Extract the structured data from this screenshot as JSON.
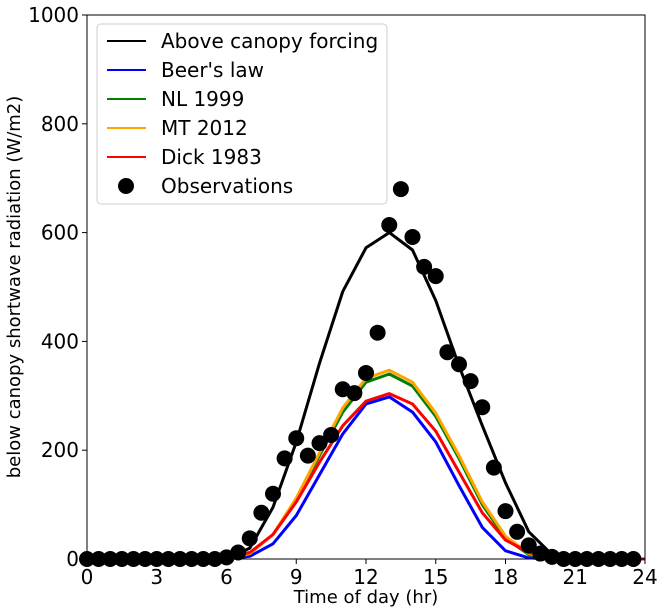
{
  "chart_data": {
    "type": "line",
    "xlabel": "Time of day (hr)",
    "ylabel": "below canopy shortwave radiation (W/m2)",
    "xlim": [
      0,
      24
    ],
    "ylim": [
      0,
      1000
    ],
    "xticks": [
      0,
      3,
      6,
      9,
      12,
      15,
      18,
      21,
      24
    ],
    "yticks": [
      0,
      200,
      400,
      600,
      800,
      1000
    ],
    "xtick_labels": [
      "0",
      "3",
      "6",
      "9",
      "12",
      "15",
      "18",
      "21",
      "24"
    ],
    "ytick_labels": [
      "0",
      "200",
      "400",
      "600",
      "800",
      "1000"
    ],
    "grid": false,
    "legend_position": "top-left",
    "series": [
      {
        "name": "Above canopy forcing",
        "color": "#000000",
        "x": [
          0,
          1,
          2,
          3,
          4,
          5,
          6,
          7,
          8,
          9,
          10,
          11,
          12,
          13,
          14,
          15,
          16,
          17,
          18,
          19,
          20,
          21,
          22,
          23,
          24
        ],
        "y": [
          0,
          0,
          0,
          0,
          0,
          0,
          0,
          20,
          95,
          215,
          360,
          492,
          572,
          600,
          568,
          475,
          355,
          245,
          140,
          50,
          8,
          0,
          0,
          0,
          0
        ]
      },
      {
        "name": "Beer's law",
        "color": "#0000ff",
        "x": [
          0,
          1,
          2,
          3,
          4,
          5,
          6,
          7,
          8,
          9,
          10,
          11,
          12,
          13,
          14,
          15,
          16,
          17,
          18,
          19,
          20,
          21,
          22,
          23,
          24
        ],
        "y": [
          0,
          0,
          0,
          0,
          0,
          0,
          0,
          5,
          28,
          80,
          155,
          230,
          285,
          298,
          270,
          215,
          135,
          58,
          15,
          2,
          0,
          0,
          0,
          0,
          0
        ]
      },
      {
        "name": "NL 1999",
        "color": "#008000",
        "x": [
          0,
          1,
          2,
          3,
          4,
          5,
          6,
          7,
          8,
          9,
          10,
          11,
          12,
          13,
          14,
          15,
          16,
          17,
          18,
          19,
          20,
          21,
          22,
          23,
          24
        ],
        "y": [
          0,
          0,
          0,
          0,
          0,
          0,
          0,
          10,
          45,
          110,
          190,
          270,
          325,
          340,
          318,
          262,
          185,
          100,
          38,
          8,
          0,
          0,
          0,
          0,
          0
        ]
      },
      {
        "name": "MT 2012",
        "color": "#ffa500",
        "x": [
          0,
          1,
          2,
          3,
          4,
          5,
          6,
          7,
          8,
          9,
          10,
          11,
          12,
          13,
          14,
          15,
          16,
          17,
          18,
          19,
          20,
          21,
          22,
          23,
          24
        ],
        "y": [
          0,
          0,
          0,
          0,
          0,
          0,
          0,
          10,
          45,
          112,
          195,
          278,
          332,
          347,
          325,
          268,
          190,
          105,
          42,
          10,
          0,
          0,
          0,
          0,
          0
        ]
      },
      {
        "name": "Dick 1983",
        "color": "#ff0000",
        "x": [
          0,
          1,
          2,
          3,
          4,
          5,
          6,
          7,
          8,
          9,
          10,
          11,
          12,
          13,
          14,
          15,
          16,
          17,
          18,
          19,
          20,
          21,
          22,
          23,
          24
        ],
        "y": [
          0,
          0,
          0,
          0,
          0,
          0,
          3,
          12,
          45,
          105,
          178,
          245,
          290,
          304,
          285,
          235,
          160,
          85,
          35,
          12,
          3,
          0,
          0,
          0,
          0
        ]
      },
      {
        "name": "Observations",
        "color": "#000000",
        "marker": "circle",
        "x": [
          0,
          0.5,
          1,
          1.5,
          2,
          2.5,
          3,
          3.5,
          4,
          4.5,
          5,
          5.5,
          6,
          6.5,
          7,
          7.5,
          8,
          8.5,
          9,
          9.5,
          10,
          10.5,
          11,
          11.5,
          12,
          12.5,
          13,
          13.5,
          14,
          14.5,
          15,
          15.5,
          16,
          16.5,
          17,
          17.5,
          18,
          18.5,
          19,
          19.5,
          20,
          20.5,
          21,
          21.5,
          22,
          22.5,
          23,
          23.5
        ],
        "y": [
          0,
          0,
          0,
          0,
          0,
          0,
          0,
          0,
          0,
          0,
          0,
          0,
          3,
          12,
          38,
          85,
          120,
          185,
          222,
          190,
          213,
          228,
          312,
          305,
          342,
          416,
          614,
          680,
          592,
          537,
          520,
          380,
          358,
          327,
          279,
          168,
          88,
          50,
          25,
          10,
          4,
          0,
          0,
          0,
          0,
          0,
          0,
          0
        ]
      }
    ]
  }
}
